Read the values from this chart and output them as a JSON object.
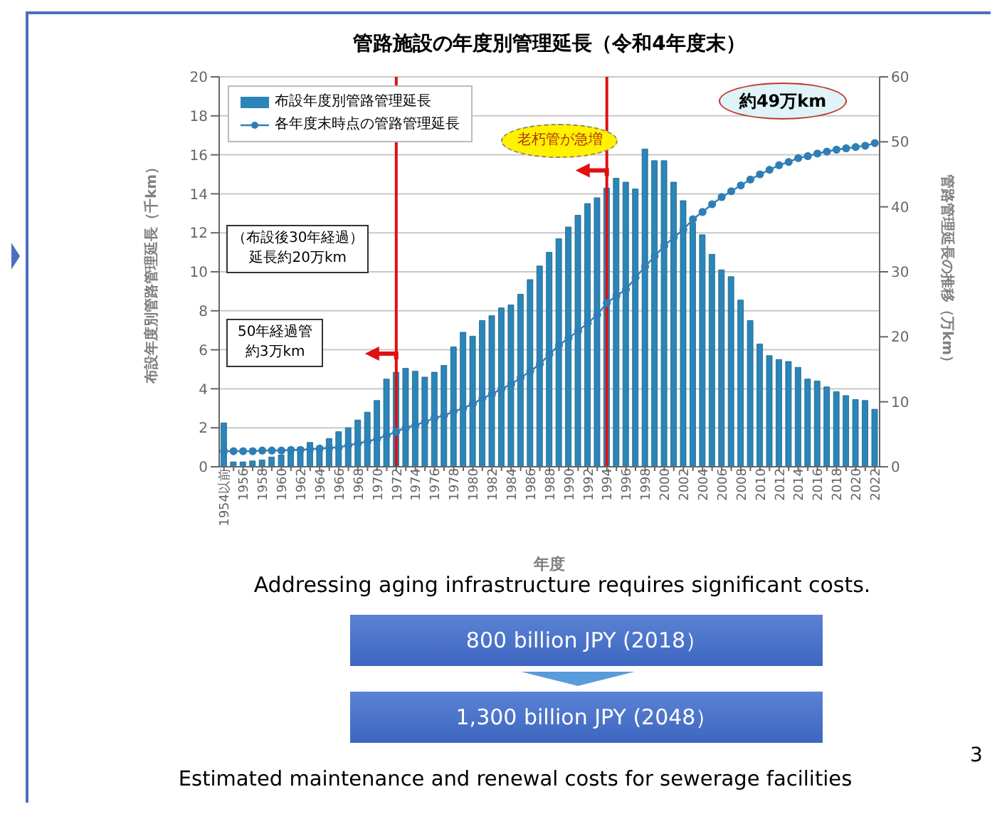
{
  "chart_data": {
    "type": "bar",
    "title": "管路施設の年度別管理延長（令和4年度末）",
    "xlabel": "年度",
    "ylabel": "布設年度別管路管理延長（千km）",
    "y2label": "管路管理延長の推移（万km）",
    "categories": [
      "1954以前",
      null,
      "1956",
      null,
      "1958",
      null,
      "1960",
      null,
      "1962",
      null,
      "1964",
      null,
      "1966",
      null,
      "1968",
      null,
      "1970",
      null,
      "1972",
      null,
      "1974",
      null,
      "1976",
      null,
      "1978",
      null,
      "1980",
      null,
      "1982",
      null,
      "1984",
      null,
      "1986",
      null,
      "1988",
      null,
      "1990",
      null,
      "1992",
      null,
      "1994",
      null,
      "1996",
      null,
      "1998",
      null,
      "2000",
      null,
      "2002",
      null,
      "2004",
      null,
      "2006",
      null,
      "2008",
      null,
      "2010",
      null,
      "2012",
      null,
      "2014",
      null,
      "2016",
      null,
      "2018",
      null,
      "2020",
      null,
      "2022"
    ],
    "series": [
      {
        "name": "布設年度別管路管理延長",
        "color": "#2a86b8",
        "values": [
          2.25,
          0.25,
          0.25,
          0.3,
          0.35,
          0.5,
          0.6,
          0.8,
          1.0,
          1.25,
          1.05,
          1.45,
          1.8,
          2.0,
          2.4,
          2.8,
          3.4,
          4.5,
          4.85,
          5.05,
          4.9,
          4.6,
          4.85,
          5.2,
          6.15,
          6.9,
          6.7,
          7.5,
          7.75,
          8.15,
          8.3,
          8.85,
          9.6,
          10.3,
          11.0,
          11.7,
          12.3,
          12.9,
          13.5,
          13.8,
          14.3,
          14.8,
          14.6,
          14.25,
          16.3,
          15.7,
          15.7,
          14.6,
          13.65,
          12.5,
          11.9,
          10.9,
          10.1,
          9.75,
          8.55,
          7.5,
          6.3,
          5.7,
          5.5,
          5.4,
          5.1,
          4.5,
          4.4,
          4.1,
          3.85,
          3.65,
          3.45,
          3.4,
          2.95
        ]
      },
      {
        "name": "各年度末時点の管路管理延長",
        "type": "line",
        "axis": "y2",
        "color": "#2f7fb5",
        "values": [
          2.4,
          2.4,
          2.4,
          2.4,
          2.5,
          2.5,
          2.5,
          2.6,
          2.6,
          2.7,
          2.8,
          2.9,
          3.0,
          3.3,
          3.6,
          3.9,
          4.3,
          4.8,
          5.4,
          6.0,
          6.4,
          6.9,
          7.5,
          7.9,
          8.5,
          9.0,
          9.7,
          10.5,
          11.2,
          12.0,
          12.7,
          13.7,
          14.7,
          15.8,
          17.3,
          18.7,
          19.8,
          20.9,
          22.1,
          23.4,
          25.2,
          26.3,
          27.3,
          29.1,
          30.8,
          32.4,
          34.0,
          35.3,
          36.5,
          38.1,
          39.2,
          40.4,
          41.5,
          42.4,
          43.3,
          44.2,
          45.0,
          45.7,
          46.4,
          46.9,
          47.5,
          47.8,
          48.2,
          48.5,
          48.8,
          49.0,
          49.2,
          49.4,
          49.8
        ]
      }
    ],
    "ylim": [
      0,
      20
    ],
    "yticks": [
      0,
      2,
      4,
      6,
      8,
      10,
      12,
      14,
      16,
      18,
      20
    ],
    "y2lim": [
      0,
      60
    ],
    "y2ticks": [
      0,
      10,
      20,
      30,
      40,
      50,
      60
    ],
    "ref_lines": [
      {
        "axis": "x",
        "value": "1972",
        "color": "#e01010"
      },
      {
        "axis": "x",
        "value": "1994",
        "color": "#e01010"
      }
    ],
    "annotations": [
      "約49万km",
      "老朽管が急増",
      "50年経過管約3万km",
      "（布設後30年経過）延長約20万km",
      "Addressing aging infrastructure requires significant costs.",
      "800 billion JPY (2018）",
      "1,300 billion JPY (2048）",
      "Estimated maintenance and renewal costs for sewerage facilities",
      "3"
    ],
    "grid": "y",
    "legend": "top left",
    "marker": "circle",
    "line_style": "solid"
  }
}
